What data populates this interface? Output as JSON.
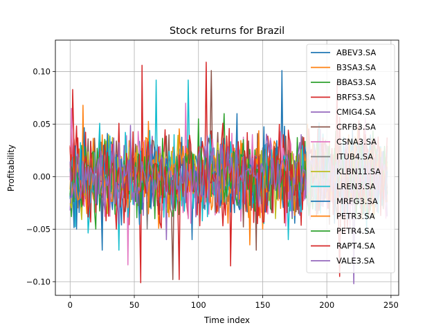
{
  "chart_data": {
    "type": "line",
    "title": "Stock returns for Brazil",
    "xlabel": "Time index",
    "ylabel": "Profitability",
    "xlim": [
      -11.5,
      256
    ],
    "ylim": [
      -0.113,
      0.13
    ],
    "xticks": [
      0,
      50,
      100,
      150,
      200,
      250
    ],
    "yticks": [
      -0.1,
      -0.05,
      0.0,
      0.05,
      0.1
    ],
    "ytick_labels": [
      "−0.10",
      "−0.05",
      "0.00",
      "0.05",
      "0.10"
    ],
    "grid": true,
    "legend_position": "upper-right",
    "n_points": 248,
    "series": [
      {
        "name": "ABEV3.SA",
        "color": "#1f77b4",
        "seed": 11,
        "amp": 0.024,
        "spikes": [
          [
            165,
            0.101
          ],
          [
            95,
            -0.06
          ]
        ]
      },
      {
        "name": "B3SA3.SA",
        "color": "#ff7f0e",
        "seed": 23,
        "amp": 0.027,
        "spikes": [
          [
            10,
            0.068
          ],
          [
            140,
            -0.065
          ]
        ]
      },
      {
        "name": "BBAS3.SA",
        "color": "#2ca02c",
        "seed": 37,
        "amp": 0.024,
        "spikes": [
          [
            3,
            0.035
          ],
          [
            120,
            0.06
          ]
        ]
      },
      {
        "name": "BRFS3.SA",
        "color": "#d62728",
        "seed": 41,
        "amp": 0.033,
        "spikes": [
          [
            2,
            0.083
          ],
          [
            55,
            -0.101
          ],
          [
            56,
            0.106
          ],
          [
            106,
            0.109
          ],
          [
            125,
            -0.085
          ],
          [
            85,
            -0.098
          ]
        ]
      },
      {
        "name": "CMIG4.SA",
        "color": "#9467bd",
        "seed": 53,
        "amp": 0.022,
        "spikes": [
          [
            75,
            -0.06
          ],
          [
            180,
            0.04
          ]
        ]
      },
      {
        "name": "CRFB3.SA",
        "color": "#8c564b",
        "seed": 61,
        "amp": 0.028,
        "spikes": [
          [
            80,
            -0.098
          ],
          [
            110,
            0.101
          ],
          [
            145,
            -0.07
          ]
        ]
      },
      {
        "name": "CSNA3.SA",
        "color": "#e377c2",
        "seed": 71,
        "amp": 0.028,
        "spikes": [
          [
            1,
            0.065
          ],
          [
            45,
            -0.084
          ],
          [
            90,
            0.07
          ]
        ]
      },
      {
        "name": "ITUB4.SA",
        "color": "#7f7f7f",
        "seed": 83,
        "amp": 0.018,
        "spikes": [
          [
            60,
            -0.05
          ],
          [
            200,
            0.03
          ]
        ]
      },
      {
        "name": "KLBN11.SA",
        "color": "#bcbd22",
        "seed": 97,
        "amp": 0.02,
        "spikes": [
          [
            30,
            0.04
          ],
          [
            160,
            -0.04
          ]
        ]
      },
      {
        "name": "LREN3.SA",
        "color": "#17becf",
        "seed": 101,
        "amp": 0.03,
        "spikes": [
          [
            67,
            0.092
          ],
          [
            92,
            0.092
          ],
          [
            38,
            -0.07
          ],
          [
            170,
            -0.06
          ]
        ]
      },
      {
        "name": "MRFG3.SA",
        "color": "#1f77b4",
        "seed": 113,
        "amp": 0.028,
        "spikes": [
          [
            25,
            -0.07
          ],
          [
            130,
            0.06
          ]
        ]
      },
      {
        "name": "PETR3.SA",
        "color": "#ff7f0e",
        "seed": 127,
        "amp": 0.025,
        "spikes": [
          [
            185,
            0.05
          ],
          [
            150,
            -0.05
          ]
        ]
      },
      {
        "name": "PETR4.SA",
        "color": "#2ca02c",
        "seed": 131,
        "amp": 0.024,
        "spikes": [
          [
            100,
            0.055
          ],
          [
            20,
            -0.05
          ]
        ]
      },
      {
        "name": "RAPT4.SA",
        "color": "#d62728",
        "seed": 139,
        "amp": 0.03,
        "spikes": [
          [
            210,
            -0.095
          ],
          [
            208,
            0.09
          ],
          [
            230,
            0.04
          ]
        ]
      },
      {
        "name": "VALE3.SA",
        "color": "#9467bd",
        "seed": 149,
        "amp": 0.024,
        "spikes": [
          [
            221,
            -0.102
          ],
          [
            195,
            0.045
          ]
        ]
      }
    ]
  }
}
